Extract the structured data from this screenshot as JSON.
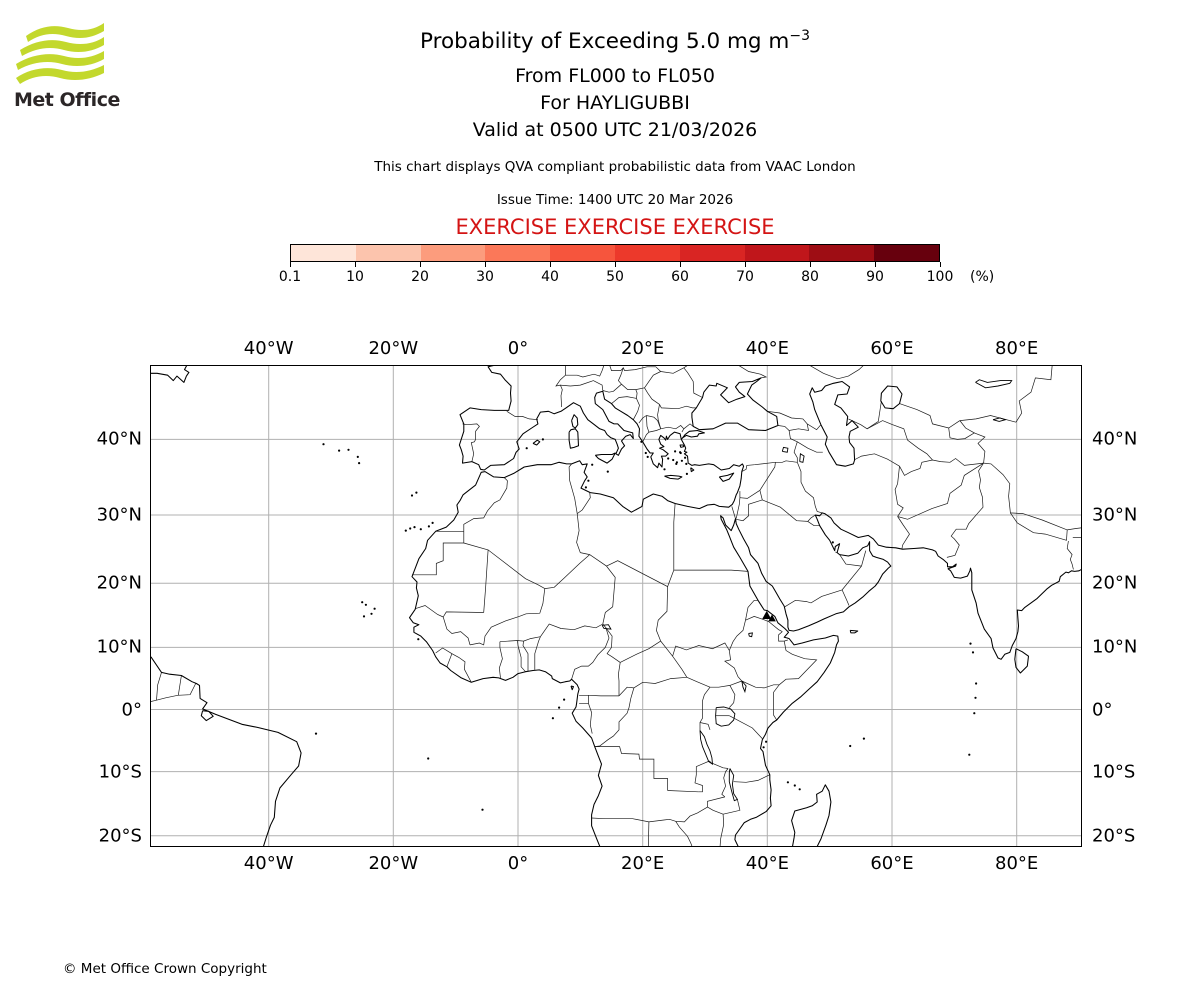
{
  "logo": {
    "text": "Met Office",
    "wave_color": "#c3d82d"
  },
  "header": {
    "title_prefix": "Probability of Exceeding 5.0 mg m",
    "title_exp": "−3",
    "line1": "From FL000 to FL050",
    "line2": "For HAYLIGUBBI",
    "line3": "Valid at 0500 UTC 21/03/2026",
    "qva_note": "This chart displays QVA compliant probabilistic data from VAAC London",
    "issue_time": "Issue Time: 1400 UTC 20 Mar 2026",
    "exercise": "EXERCISE EXERCISE EXERCISE",
    "exercise_color": "#d41414"
  },
  "colorbar": {
    "labels": [
      "0.1",
      "10",
      "20",
      "30",
      "40",
      "50",
      "60",
      "70",
      "80",
      "90",
      "100"
    ],
    "unit": "(%)",
    "colors": [
      "#fee5d9",
      "#fcc4ad",
      "#fc9c7d",
      "#fb7859",
      "#f6553d",
      "#ec392b",
      "#d92523",
      "#c0161b",
      "#9e0d14",
      "#67000d"
    ]
  },
  "map": {
    "extent": {
      "lon_min": -58.9,
      "lon_max": 90.3,
      "lat_min": -21.6,
      "lat_max": 48.5
    },
    "lon_ticks": [
      {
        "label": "40°W",
        "lon": -40
      },
      {
        "label": "20°W",
        "lon": -20
      },
      {
        "label": "0°",
        "lon": 0
      },
      {
        "label": "20°E",
        "lon": 20
      },
      {
        "label": "40°E",
        "lon": 40
      },
      {
        "label": "60°E",
        "lon": 60
      },
      {
        "label": "80°E",
        "lon": 80
      }
    ],
    "lat_ticks": [
      {
        "label": "40°N",
        "lat": 40
      },
      {
        "label": "30°N",
        "lat": 30
      },
      {
        "label": "20°N",
        "lat": 20
      },
      {
        "label": "10°N",
        "lat": 10
      },
      {
        "label": "0°",
        "lat": 0
      },
      {
        "label": "10°S",
        "lat": -10
      },
      {
        "label": "20°S",
        "lat": -20
      }
    ],
    "gridline_color": "#b0b0b0",
    "volcano_markers": [
      {
        "lon": 39.9,
        "lat": 15.05
      },
      {
        "lon": 40.75,
        "lat": 14.6
      }
    ]
  },
  "footer": {
    "copyright": "© Met Office Crown Copyright"
  }
}
